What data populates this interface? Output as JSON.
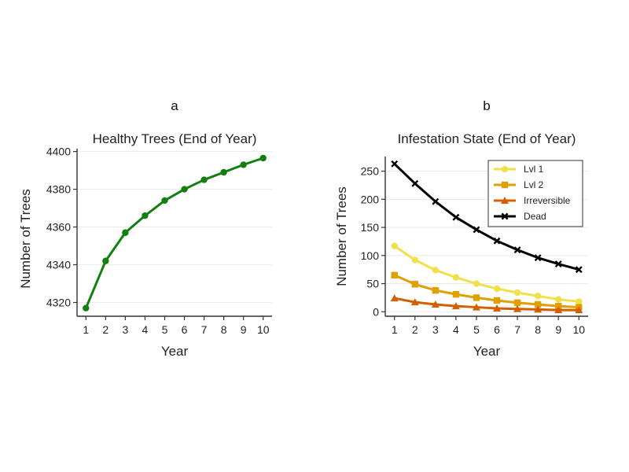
{
  "panels": [
    {
      "letter": "a",
      "chart_data": {
        "type": "line",
        "title": "Healthy Trees (End of Year)",
        "xlabel": "Year",
        "ylabel": "Number of Trees",
        "x": [
          1,
          2,
          3,
          4,
          5,
          6,
          7,
          8,
          9,
          10
        ],
        "xlim": [
          0.55,
          10.45
        ],
        "ylim": [
          4312.7,
          4401.5
        ],
        "yticks": [
          4320,
          4340,
          4360,
          4380,
          4400
        ],
        "grid": "horizontal",
        "legend": "none",
        "series": [
          {
            "color": "#118011",
            "marker": "circle",
            "values": [
              4317,
              4342,
              4357,
              4366,
              4374,
              4380,
              4385,
              4389,
              4393,
              4396.5
            ]
          }
        ]
      }
    },
    {
      "letter": "b",
      "chart_data": {
        "type": "line",
        "title": "Infestation State (End of Year)",
        "xlabel": "Year",
        "ylabel": "Number of Trees",
        "x": [
          1,
          2,
          3,
          4,
          5,
          6,
          7,
          8,
          9,
          10
        ],
        "xlim": [
          0.55,
          10.45
        ],
        "ylim": [
          -8,
          276
        ],
        "yticks": [
          0,
          50,
          100,
          150,
          200,
          250
        ],
        "grid": "horizontal",
        "legend": "top-right",
        "series": [
          {
            "name": "Lvl 1",
            "color": "#f0e04a",
            "marker": "circle",
            "values": [
              117,
              92,
              74,
              61,
              50,
              41,
              34,
              28,
              22,
              18
            ]
          },
          {
            "name": "Lvl 2",
            "color": "#e0a000",
            "marker": "square",
            "values": [
              65,
              49,
              38,
              31,
              25,
              20,
              16,
              13,
              10,
              8
            ]
          },
          {
            "name": "Irreversible",
            "color": "#d55e00",
            "marker": "triangle",
            "values": [
              24,
              17,
              13,
              10,
              8,
              6,
              5,
              4,
              3,
              3
            ]
          },
          {
            "name": "Dead",
            "color": "#000000",
            "marker": "x",
            "values": [
              263,
              228,
              196,
              168,
              146,
              126,
              110,
              96,
              85,
              75
            ]
          }
        ]
      }
    }
  ]
}
